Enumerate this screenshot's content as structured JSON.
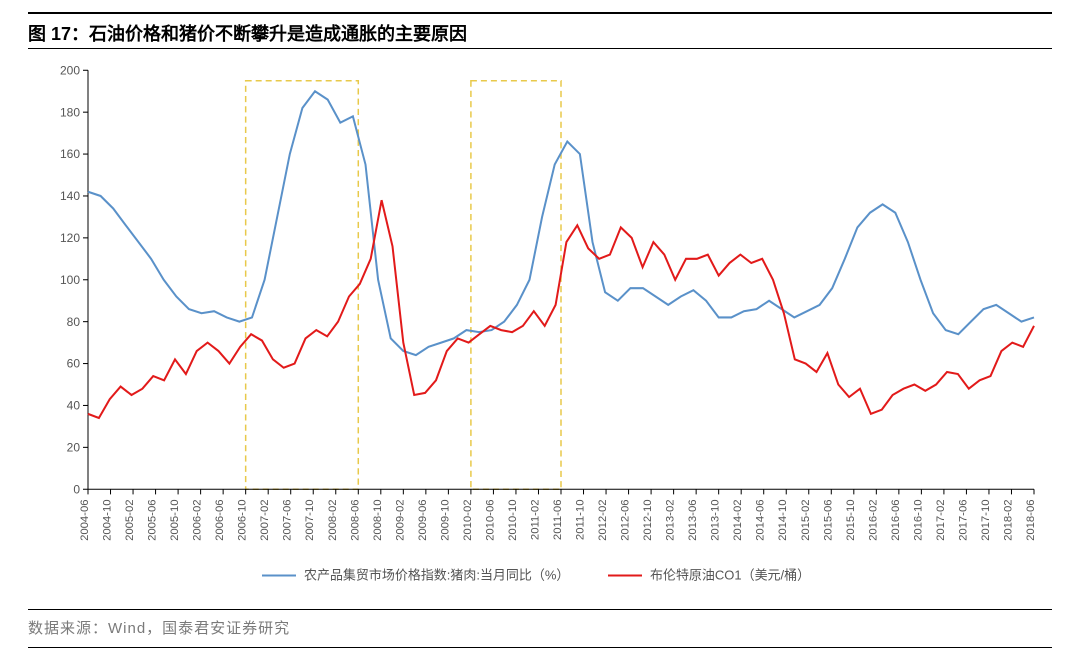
{
  "title": "图 17：石油价格和猪价不断攀升是造成通胀的主要原因",
  "footer": "数据来源：Wind，国泰君安证券研究",
  "chart": {
    "type": "line",
    "background_color": "#ffffff",
    "axis_color": "#000000",
    "label_color": "#555555",
    "title_fontsize": 18,
    "label_fontsize": 12,
    "xlabel_fontsize": 11,
    "ylim": [
      0,
      200
    ],
    "ytick_step": 20,
    "yticks": [
      0,
      20,
      40,
      60,
      80,
      100,
      120,
      140,
      160,
      180,
      200
    ],
    "xlabels": [
      "2004-06",
      "2004-10",
      "2005-02",
      "2005-06",
      "2005-10",
      "2006-02",
      "2006-06",
      "2006-10",
      "2007-02",
      "2007-06",
      "2007-10",
      "2008-02",
      "2008-06",
      "2008-10",
      "2009-02",
      "2009-06",
      "2009-10",
      "2010-02",
      "2010-06",
      "2010-10",
      "2011-02",
      "2011-06",
      "2011-10",
      "2012-02",
      "2012-06",
      "2012-10",
      "2013-02",
      "2013-06",
      "2013-10",
      "2014-02",
      "2014-06",
      "2014-10",
      "2015-02",
      "2015-06",
      "2015-10",
      "2016-02",
      "2016-06",
      "2016-10",
      "2017-02",
      "2017-06",
      "2017-10",
      "2018-02",
      "2018-06"
    ],
    "highlight_boxes": [
      {
        "x_start": "2006-10",
        "x_end": "2008-06",
        "y_start": 0,
        "y_end": 195,
        "color": "#e8c94a"
      },
      {
        "x_start": "2010-02",
        "x_end": "2011-06",
        "y_start": 0,
        "y_end": 195,
        "color": "#e8c94a"
      }
    ],
    "legend": {
      "position": "bottom-center",
      "items": [
        {
          "label": "农产品集贸市场价格指数:猪肉:当月同比（%）",
          "color": "#5a91c9"
        },
        {
          "label": "布伦特原油CO1（美元/桶）",
          "color": "#e21a1a"
        }
      ]
    },
    "series": [
      {
        "name": "农产品集贸市场价格指数:猪肉:当月同比（%）",
        "color": "#5a91c9",
        "stroke_width": 2,
        "values": [
          142,
          140,
          134,
          126,
          118,
          110,
          100,
          92,
          86,
          84,
          85,
          82,
          80,
          82,
          100,
          130,
          160,
          182,
          190,
          186,
          175,
          178,
          155,
          100,
          72,
          66,
          64,
          68,
          70,
          72,
          76,
          75,
          76,
          80,
          88,
          100,
          130,
          155,
          166,
          160,
          118,
          94,
          90,
          96,
          96,
          92,
          88,
          92,
          95,
          90,
          82,
          82,
          85,
          86,
          90,
          86,
          82,
          85,
          88,
          96,
          110,
          125,
          132,
          136,
          132,
          118,
          100,
          84,
          76,
          74,
          80,
          86,
          88,
          84,
          80,
          82
        ]
      },
      {
        "name": "布伦特原油CO1（美元/桶）",
        "color": "#e21a1a",
        "stroke_width": 2,
        "values": [
          36,
          34,
          43,
          49,
          45,
          48,
          54,
          52,
          62,
          55,
          66,
          70,
          66,
          60,
          68,
          74,
          71,
          62,
          58,
          60,
          72,
          76,
          73,
          80,
          92,
          98,
          110,
          138,
          116,
          70,
          45,
          46,
          52,
          66,
          72,
          70,
          74,
          78,
          76,
          75,
          78,
          85,
          78,
          88,
          118,
          126,
          115,
          110,
          112,
          125,
          120,
          106,
          118,
          112,
          100,
          110,
          110,
          112,
          102,
          108,
          112,
          108,
          110,
          100,
          84,
          62,
          60,
          56,
          65,
          50,
          44,
          48,
          36,
          38,
          45,
          48,
          50,
          47,
          50,
          56,
          55,
          48,
          52,
          54,
          66,
          70,
          68,
          78
        ]
      }
    ]
  }
}
